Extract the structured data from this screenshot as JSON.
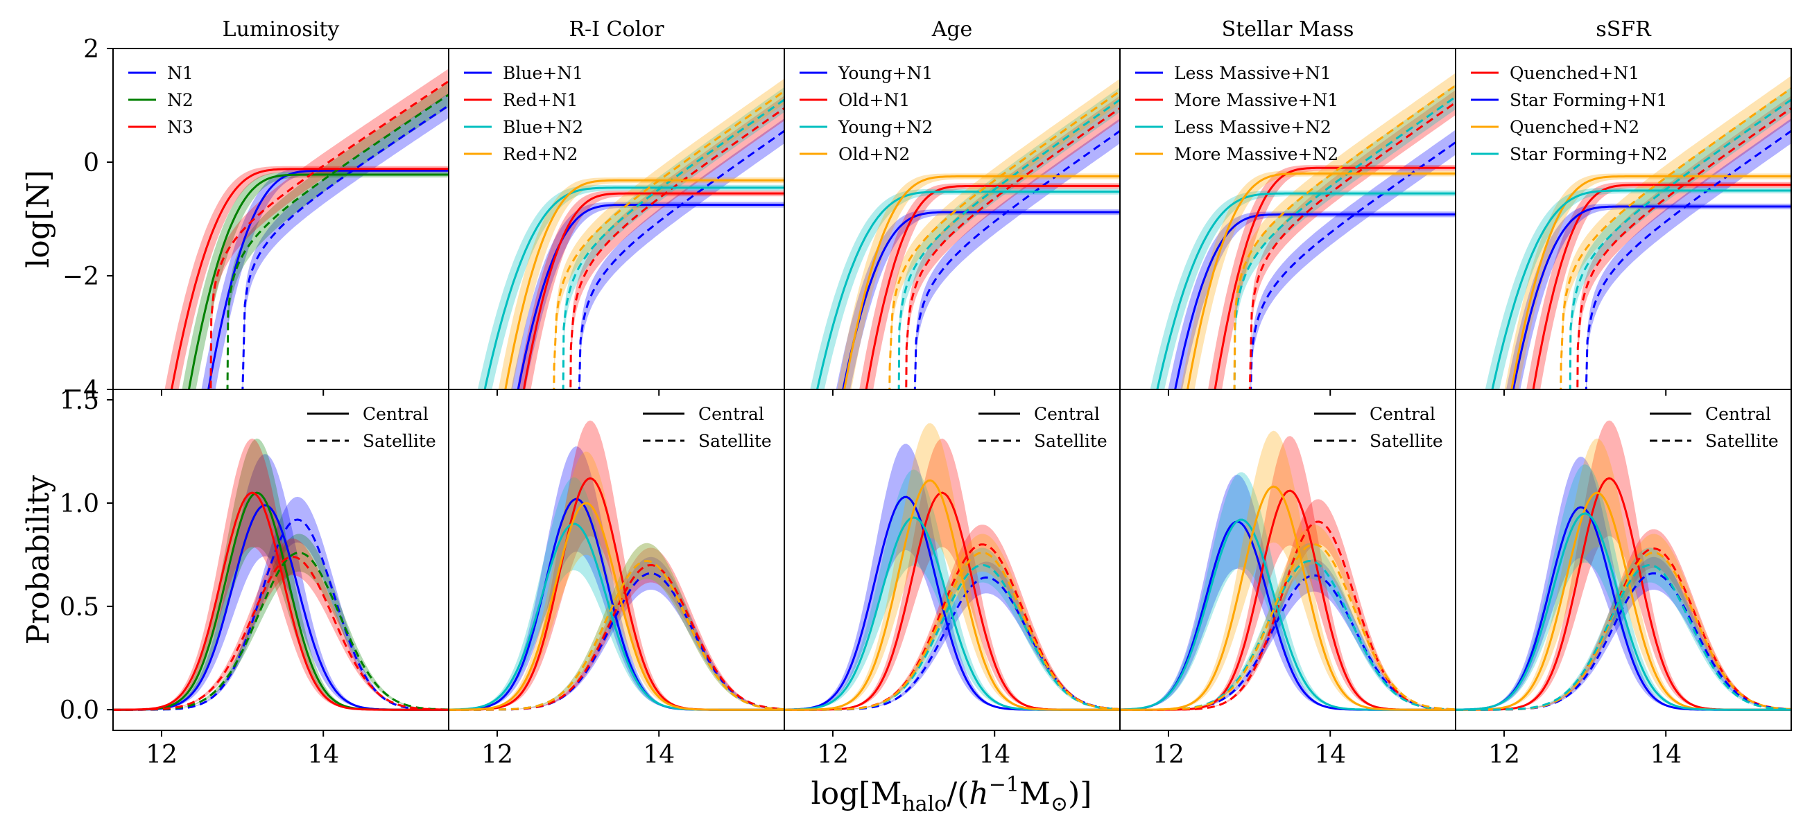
{
  "figure": {
    "ylabel_top": "log[N]",
    "ylabel_bottom": "Probability",
    "xlabel": "log[M_halo/(h^-1 M_sun)]"
  },
  "chart_data": {
    "type": "line",
    "layout": "2 rows x 5 columns",
    "description_top": "Halo occupation: central (solid, saturating) and satellite (dashed, power-law) log number vs log halo mass",
    "description_bottom": "Probability distribution of host halo mass for central (solid) and satellite (dashed) galaxies",
    "xlim": [
      11.4,
      15.55
    ],
    "xticks": [
      12,
      14
    ],
    "top_ylim": [
      -4,
      2
    ],
    "top_yticks": [
      -4,
      -2,
      0,
      2
    ],
    "bottom_ylim": [
      -0.1,
      1.55
    ],
    "bottom_yticks": [
      0.0,
      0.5,
      1.0,
      1.5
    ],
    "linestyle_legend": [
      {
        "label": "Central",
        "style": "solid"
      },
      {
        "label": "Satellite",
        "style": "dashed"
      }
    ],
    "panels": [
      {
        "title": "Luminosity",
        "series": [
          {
            "name": "N1",
            "color": "#0000ff",
            "cen": {
              "logN": -0.15,
              "mmin": 13.35,
              "sig": 0.3
            },
            "sat": {
              "m1": 14.5,
              "alpha": 0.95,
              "mcut": 13.0
            },
            "pcen": {
              "peak": 0.99,
              "mu": 13.28,
              "sig": 0.4
            },
            "psat": {
              "peak": 0.92,
              "mu": 13.68,
              "sig": 0.45
            }
          },
          {
            "name": "N2",
            "color": "#008000",
            "cen": {
              "logN": -0.22,
              "mmin": 13.1,
              "sig": 0.3
            },
            "sat": {
              "m1": 14.3,
              "alpha": 0.95,
              "mcut": 12.8
            },
            "pcen": {
              "peak": 1.05,
              "mu": 13.18,
              "sig": 0.38
            },
            "psat": {
              "peak": 0.76,
              "mu": 13.7,
              "sig": 0.5
            }
          },
          {
            "name": "N3",
            "color": "#ff0000",
            "cen": {
              "logN": -0.12,
              "mmin": 12.95,
              "sig": 0.32
            },
            "sat": {
              "m1": 14.05,
              "alpha": 0.95,
              "mcut": 12.6
            },
            "pcen": {
              "peak": 1.05,
              "mu": 13.12,
              "sig": 0.38
            },
            "psat": {
              "peak": 0.74,
              "mu": 13.62,
              "sig": 0.5
            }
          }
        ]
      },
      {
        "title": "R-I Color",
        "series": [
          {
            "name": "Blue+N1",
            "color": "#0000ff",
            "cen": {
              "logN": -0.75,
              "mmin": 12.95,
              "sig": 0.3
            },
            "sat": {
              "m1": 15.0,
              "alpha": 1.0,
              "mcut": 13.0
            },
            "pcen": {
              "peak": 1.02,
              "mu": 12.98,
              "sig": 0.38
            },
            "psat": {
              "peak": 0.66,
              "mu": 13.9,
              "sig": 0.5
            }
          },
          {
            "name": "Red+N1",
            "color": "#ff0000",
            "cen": {
              "logN": -0.55,
              "mmin": 13.0,
              "sig": 0.28
            },
            "sat": {
              "m1": 14.6,
              "alpha": 1.0,
              "mcut": 12.9
            },
            "pcen": {
              "peak": 1.12,
              "mu": 13.15,
              "sig": 0.37
            },
            "psat": {
              "peak": 0.7,
              "mu": 13.9,
              "sig": 0.5
            }
          },
          {
            "name": "Blue+N2",
            "color": "#00bfbf",
            "cen": {
              "logN": -0.45,
              "mmin": 12.7,
              "sig": 0.35
            },
            "sat": {
              "m1": 14.45,
              "alpha": 1.0,
              "mcut": 12.8
            },
            "pcen": {
              "peak": 0.9,
              "mu": 12.95,
              "sig": 0.4
            },
            "psat": {
              "peak": 0.72,
              "mu": 13.85,
              "sig": 0.5
            }
          },
          {
            "name": "Red+N2",
            "color": "#ffa500",
            "cen": {
              "logN": -0.32,
              "mmin": 12.85,
              "sig": 0.3
            },
            "sat": {
              "m1": 14.3,
              "alpha": 1.0,
              "mcut": 12.7
            },
            "pcen": {
              "peak": 1.0,
              "mu": 13.1,
              "sig": 0.38
            },
            "psat": {
              "peak": 0.72,
              "mu": 13.85,
              "sig": 0.5
            }
          }
        ]
      },
      {
        "title": "Age",
        "series": [
          {
            "name": "Young+N1",
            "color": "#0000ff",
            "cen": {
              "logN": -0.88,
              "mmin": 12.8,
              "sig": 0.3
            },
            "sat": {
              "m1": 15.0,
              "alpha": 1.0,
              "mcut": 13.0
            },
            "pcen": {
              "peak": 1.03,
              "mu": 12.9,
              "sig": 0.38
            },
            "psat": {
              "peak": 0.64,
              "mu": 13.9,
              "sig": 0.5
            }
          },
          {
            "name": "Old+N1",
            "color": "#ff0000",
            "cen": {
              "logN": -0.42,
              "mmin": 13.1,
              "sig": 0.28
            },
            "sat": {
              "m1": 14.6,
              "alpha": 1.0,
              "mcut": 12.9
            },
            "pcen": {
              "peak": 1.05,
              "mu": 13.35,
              "sig": 0.37
            },
            "psat": {
              "peak": 0.8,
              "mu": 13.85,
              "sig": 0.5
            }
          },
          {
            "name": "Young+N2",
            "color": "#00bfbf",
            "cen": {
              "logN": -0.52,
              "mmin": 12.65,
              "sig": 0.35
            },
            "sat": {
              "m1": 14.45,
              "alpha": 1.0,
              "mcut": 12.8
            },
            "pcen": {
              "peak": 0.93,
              "mu": 13.0,
              "sig": 0.4
            },
            "psat": {
              "peak": 0.7,
              "mu": 13.85,
              "sig": 0.5
            }
          },
          {
            "name": "Old+N2",
            "color": "#ffa500",
            "cen": {
              "logN": -0.25,
              "mmin": 12.9,
              "sig": 0.3
            },
            "sat": {
              "m1": 14.3,
              "alpha": 1.0,
              "mcut": 12.7
            },
            "pcen": {
              "peak": 1.11,
              "mu": 13.2,
              "sig": 0.38
            },
            "psat": {
              "peak": 0.76,
              "mu": 13.85,
              "sig": 0.5
            }
          }
        ]
      },
      {
        "title": "Stellar Mass",
        "series": [
          {
            "name": "Less Massive+N1",
            "color": "#0000ff",
            "cen": {
              "logN": -0.92,
              "mmin": 12.75,
              "sig": 0.3
            },
            "sat": {
              "m1": 15.2,
              "alpha": 1.0,
              "mcut": 13.0
            },
            "pcen": {
              "peak": 0.91,
              "mu": 12.85,
              "sig": 0.38
            },
            "psat": {
              "peak": 0.65,
              "mu": 13.8,
              "sig": 0.5
            }
          },
          {
            "name": "More Massive+N1",
            "color": "#ff0000",
            "cen": {
              "logN": -0.1,
              "mmin": 13.3,
              "sig": 0.28
            },
            "sat": {
              "m1": 14.5,
              "alpha": 1.0,
              "mcut": 13.0
            },
            "pcen": {
              "peak": 1.06,
              "mu": 13.5,
              "sig": 0.36
            },
            "psat": {
              "peak": 0.91,
              "mu": 13.85,
              "sig": 0.45
            }
          },
          {
            "name": "Less Massive+N2",
            "color": "#00bfbf",
            "cen": {
              "logN": -0.55,
              "mmin": 12.7,
              "sig": 0.35
            },
            "sat": {
              "m1": 14.4,
              "alpha": 1.0,
              "mcut": 12.8
            },
            "pcen": {
              "peak": 0.92,
              "mu": 12.9,
              "sig": 0.4
            },
            "psat": {
              "peak": 0.72,
              "mu": 13.75,
              "sig": 0.5
            }
          },
          {
            "name": "More Massive+N2",
            "color": "#ffa500",
            "cen": {
              "logN": -0.2,
              "mmin": 13.0,
              "sig": 0.3
            },
            "sat": {
              "m1": 14.2,
              "alpha": 1.0,
              "mcut": 12.8
            },
            "pcen": {
              "peak": 1.08,
              "mu": 13.3,
              "sig": 0.38
            },
            "psat": {
              "peak": 0.8,
              "mu": 13.8,
              "sig": 0.5
            }
          }
        ]
      },
      {
        "title": "sSFR",
        "series": [
          {
            "name": "Quenched+N1",
            "color": "#ff0000",
            "cen": {
              "logN": -0.4,
              "mmin": 13.05,
              "sig": 0.28
            },
            "sat": {
              "m1": 14.6,
              "alpha": 1.0,
              "mcut": 12.9
            },
            "pcen": {
              "peak": 1.12,
              "mu": 13.3,
              "sig": 0.37
            },
            "psat": {
              "peak": 0.78,
              "mu": 13.85,
              "sig": 0.5
            }
          },
          {
            "name": "Star Forming+N1",
            "color": "#0000ff",
            "cen": {
              "logN": -0.78,
              "mmin": 12.8,
              "sig": 0.3
            },
            "sat": {
              "m1": 15.0,
              "alpha": 1.0,
              "mcut": 13.0
            },
            "pcen": {
              "peak": 0.98,
              "mu": 12.95,
              "sig": 0.38
            },
            "psat": {
              "peak": 0.66,
              "mu": 13.85,
              "sig": 0.5
            }
          },
          {
            "name": "Quenched+N2",
            "color": "#ffa500",
            "cen": {
              "logN": -0.25,
              "mmin": 12.85,
              "sig": 0.3
            },
            "sat": {
              "m1": 14.25,
              "alpha": 1.0,
              "mcut": 12.7
            },
            "pcen": {
              "peak": 1.05,
              "mu": 13.15,
              "sig": 0.38
            },
            "psat": {
              "peak": 0.76,
              "mu": 13.85,
              "sig": 0.5
            }
          },
          {
            "name": "Star Forming+N2",
            "color": "#00bfbf",
            "cen": {
              "logN": -0.5,
              "mmin": 12.7,
              "sig": 0.35
            },
            "sat": {
              "m1": 14.45,
              "alpha": 1.0,
              "mcut": 12.8
            },
            "pcen": {
              "peak": 0.95,
              "mu": 13.0,
              "sig": 0.4
            },
            "psat": {
              "peak": 0.7,
              "mu": 13.8,
              "sig": 0.5
            }
          }
        ]
      }
    ]
  }
}
